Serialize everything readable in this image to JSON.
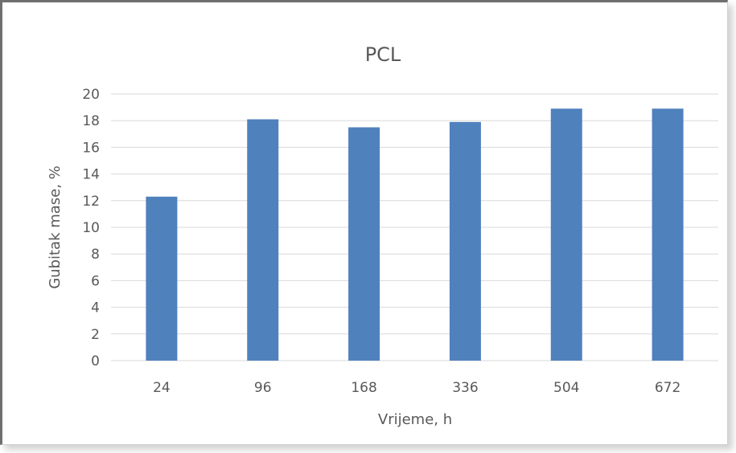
{
  "chart_data": {
    "type": "bar",
    "title": "PCL",
    "xlabel": "Vrijeme, h",
    "ylabel": "Gubitak mase, %",
    "categories": [
      "24",
      "96",
      "168",
      "336",
      "504",
      "672"
    ],
    "values": [
      12.3,
      18.1,
      17.5,
      17.9,
      18.9,
      18.9
    ],
    "ylim": [
      0,
      20
    ],
    "yticks": [
      "0",
      "2",
      "4",
      "6",
      "8",
      "10",
      "12",
      "14",
      "16",
      "18",
      "20"
    ],
    "grid": true,
    "legend": "none",
    "bar_color": "#4f81bd",
    "grid_color": "#d9d9d9",
    "text_color": "#595959"
  }
}
